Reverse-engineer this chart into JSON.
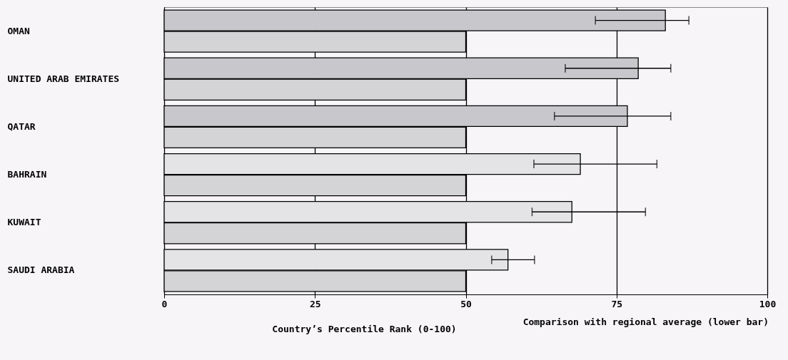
{
  "chart_data": {
    "type": "bar",
    "orientation": "horizontal",
    "xlabel": "Country’s Percentile Rank (0-100)",
    "annotations": [
      "Comparison with regional average (lower bar)"
    ],
    "categories": [
      "OMAN",
      "UNITED ARAB EMIRATES",
      "QATAR",
      "BAHRAIN",
      "KUWAIT",
      "SAUDI ARABIA"
    ],
    "series": [
      {
        "colors": [
          "#c8c8cc",
          "#c8c8cc",
          "#c8c8cc",
          "#e4e4e6",
          "#e4e4e6",
          "#e4e4e6"
        ],
        "values": [
          83.1,
          78.6,
          76.8,
          69.0,
          67.6,
          57.0
        ],
        "errors": [
          [
            71.5,
            87.0
          ],
          [
            66.5,
            84.0
          ],
          [
            64.7,
            84.0
          ],
          [
            61.3,
            81.7
          ],
          [
            61.0,
            79.8
          ],
          [
            54.3,
            61.4
          ]
        ]
      },
      {
        "color": "#d4d4d6",
        "values": [
          50,
          50,
          50,
          50,
          50,
          50
        ]
      }
    ],
    "xlim": [
      0,
      100
    ],
    "xticks": [
      0,
      25,
      50,
      75,
      100
    ],
    "grid": "x"
  }
}
